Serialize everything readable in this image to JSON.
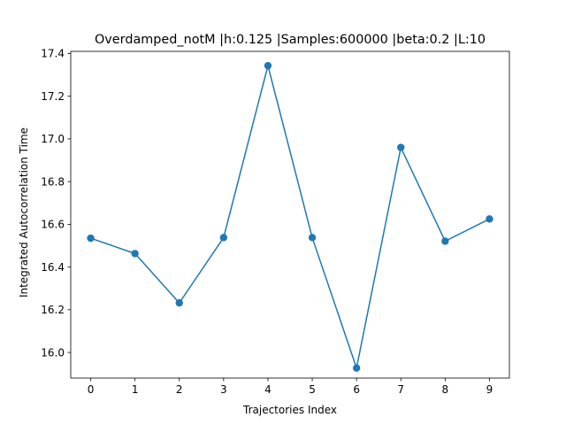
{
  "chart_data": {
    "type": "line",
    "title": "Overdamped_notM |h:0.125 |Samples:600000 |beta:0.2 |L:10",
    "xlabel": "Trajectories Index",
    "ylabel": "Integrated Autocorrelation Time",
    "xlim": [
      -0.45,
      9.45
    ],
    "ylim": [
      15.88,
      17.41
    ],
    "xticks": [
      0,
      1,
      2,
      3,
      4,
      5,
      6,
      7,
      8,
      9
    ],
    "xtick_labels": [
      "0",
      "1",
      "2",
      "3",
      "4",
      "5",
      "6",
      "7",
      "8",
      "9"
    ],
    "yticks": [
      16.0,
      16.2,
      16.4,
      16.6,
      16.8,
      17.0,
      17.2,
      17.4
    ],
    "ytick_labels": [
      "16.0",
      "16.2",
      "16.4",
      "16.6",
      "16.8",
      "17.0",
      "17.2",
      "17.4"
    ],
    "grid": false,
    "legend": "none",
    "series": [
      {
        "color": "#1f77b4",
        "marker": "circle",
        "x": [
          0,
          1,
          2,
          3,
          4,
          5,
          6,
          7,
          8,
          9
        ],
        "y": [
          16.535,
          16.463,
          16.232,
          16.538,
          17.343,
          16.538,
          15.927,
          16.96,
          16.521,
          16.625
        ]
      }
    ]
  }
}
